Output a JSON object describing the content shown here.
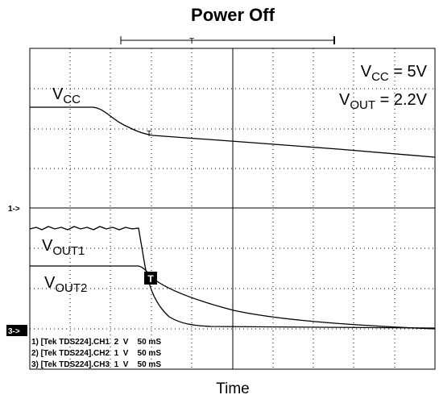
{
  "header": {
    "title": "Power Off"
  },
  "footer": {
    "axis_label": "Time"
  },
  "trace_labels": [
    {
      "main": "V",
      "sub": "CC"
    },
    {
      "main": "V",
      "sub": "OUT1"
    },
    {
      "main": "V",
      "sub": "OUT2"
    }
  ],
  "conditions": [
    {
      "main": "V",
      "sub": "CC",
      "rest": " = 5V"
    },
    {
      "main": "V",
      "sub": "OUT",
      "rest": " = 2.2V"
    }
  ],
  "markers": {
    "ch1": "1->",
    "ch3": "3->",
    "trigger": "T"
  },
  "channel_info": [
    "1) [Tek TDS224].CH1  2  V    50 mS",
    "2) [Tek TDS224].CH2  1  V    50 mS",
    "3) [Tek TDS224].CH3  1  V    50 mS"
  ]
}
